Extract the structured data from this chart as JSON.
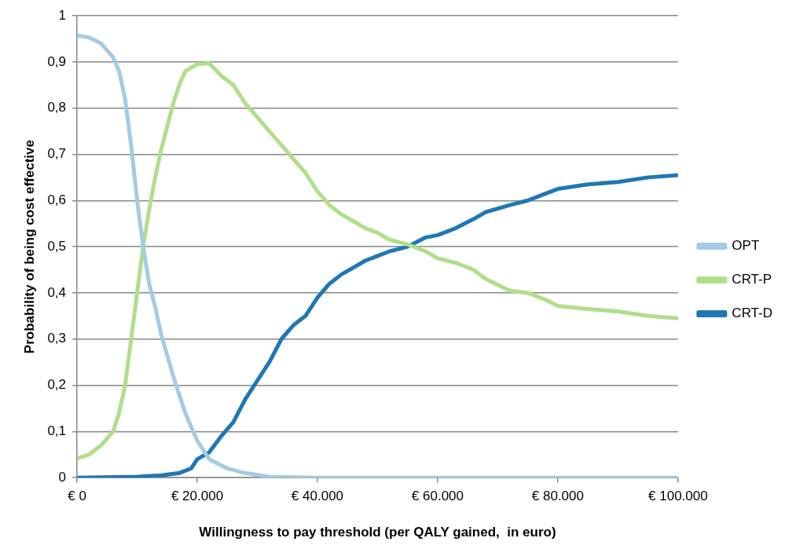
{
  "chart_data": {
    "type": "line",
    "xlabel": "Willingness to pay threshold (per QALY gained,  in euro)",
    "ylabel": "Probability of being cost effective",
    "xlim": [
      0,
      100000
    ],
    "xticks": [
      {
        "value": 0,
        "label": "€ 0"
      },
      {
        "value": 20000,
        "label": "€ 20.000"
      },
      {
        "value": 40000,
        "label": "€ 40.000"
      },
      {
        "value": 60000,
        "label": "€ 60.000"
      },
      {
        "value": 80000,
        "label": "€ 80.000"
      },
      {
        "value": 100000,
        "label": "€ 100.000"
      }
    ],
    "ylim": [
      0,
      1
    ],
    "yticks": [
      0,
      {
        "value": 0.1,
        "label": "0,1"
      },
      {
        "value": 0.2,
        "label": "0,2"
      },
      {
        "value": 0.3,
        "label": "0,3"
      },
      {
        "value": 0.4,
        "label": "0,4"
      },
      {
        "value": 0.5,
        "label": "0,5"
      },
      {
        "value": 0.6,
        "label": "0,6"
      },
      {
        "value": 0.7,
        "label": "0,7"
      },
      {
        "value": 0.8,
        "label": "0,8"
      },
      {
        "value": 0.9,
        "label": "0,9"
      },
      1
    ],
    "grid": "y",
    "legend": "right",
    "marker": "none",
    "line_style": "solid",
    "series": [
      {
        "name": "OPT",
        "color": "#a6cae3",
        "x": [
          0,
          2000,
          4000,
          6000,
          7000,
          8000,
          9000,
          10000,
          11000,
          12000,
          13000,
          14000,
          16000,
          18000,
          20000,
          22000,
          25000,
          28000,
          32000,
          40000,
          100000
        ],
        "values": [
          0.957,
          0.953,
          0.94,
          0.91,
          0.88,
          0.82,
          0.72,
          0.6,
          0.5,
          0.42,
          0.37,
          0.31,
          0.22,
          0.14,
          0.08,
          0.04,
          0.02,
          0.01,
          0.002,
          0,
          0
        ]
      },
      {
        "name": "CRT-P",
        "color": "#b0de8a",
        "x": [
          0,
          2000,
          4000,
          6000,
          7000,
          8000,
          9000,
          10000,
          11000,
          12000,
          13000,
          14000,
          15000,
          16000,
          17000,
          18000,
          20000,
          22000,
          24000,
          26000,
          28000,
          30000,
          32000,
          34000,
          36000,
          38000,
          40000,
          42000,
          44000,
          46000,
          48000,
          50000,
          52000,
          55000,
          58000,
          60000,
          63000,
          66000,
          68000,
          72000,
          75000,
          78000,
          80000,
          85000,
          90000,
          95000,
          100000
        ],
        "values": [
          0.042,
          0.05,
          0.07,
          0.1,
          0.14,
          0.2,
          0.3,
          0.4,
          0.5,
          0.58,
          0.65,
          0.71,
          0.76,
          0.81,
          0.85,
          0.88,
          0.895,
          0.897,
          0.87,
          0.85,
          0.81,
          0.78,
          0.75,
          0.72,
          0.69,
          0.66,
          0.62,
          0.59,
          0.57,
          0.555,
          0.54,
          0.53,
          0.515,
          0.505,
          0.49,
          0.475,
          0.465,
          0.45,
          0.43,
          0.405,
          0.4,
          0.385,
          0.372,
          0.365,
          0.36,
          0.35,
          0.345
        ]
      },
      {
        "name": "CRT-D",
        "color": "#1f77b4",
        "x": [
          0,
          10000,
          14000,
          17000,
          19000,
          20000,
          22000,
          24000,
          26000,
          28000,
          30000,
          32000,
          34000,
          36000,
          38000,
          40000,
          42000,
          44000,
          46000,
          48000,
          50000,
          52000,
          55000,
          58000,
          60000,
          63000,
          66000,
          68000,
          72000,
          75000,
          78000,
          80000,
          85000,
          90000,
          95000,
          100000
        ],
        "values": [
          0,
          0.002,
          0.005,
          0.01,
          0.02,
          0.04,
          0.055,
          0.09,
          0.12,
          0.17,
          0.21,
          0.25,
          0.3,
          0.33,
          0.35,
          0.39,
          0.42,
          0.44,
          0.455,
          0.47,
          0.48,
          0.49,
          0.5,
          0.52,
          0.525,
          0.54,
          0.56,
          0.575,
          0.59,
          0.6,
          0.615,
          0.625,
          0.635,
          0.64,
          0.65,
          0.655
        ]
      }
    ]
  }
}
